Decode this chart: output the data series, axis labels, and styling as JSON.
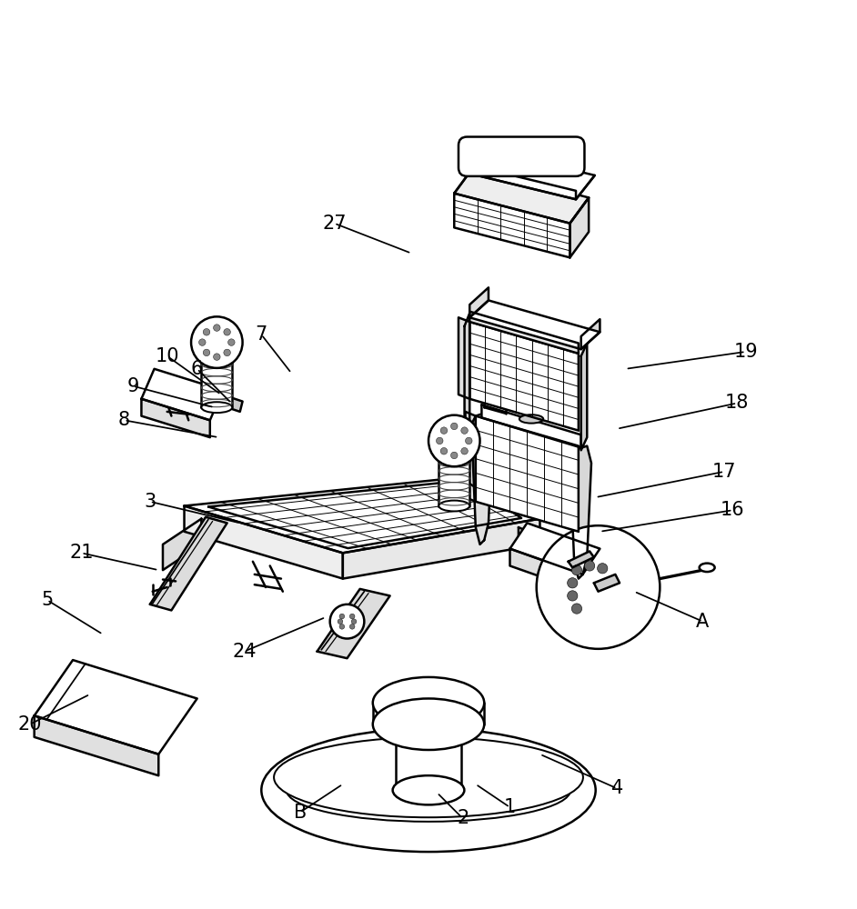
{
  "bg_color": "#ffffff",
  "line_color": "#000000",
  "line_width": 1.8,
  "annotations": [
    [
      "1",
      [
        0.595,
        0.088
      ],
      [
        0.555,
        0.115
      ]
    ],
    [
      "2",
      [
        0.54,
        0.075
      ],
      [
        0.51,
        0.105
      ]
    ],
    [
      "3",
      [
        0.175,
        0.445
      ],
      [
        0.28,
        0.42
      ]
    ],
    [
      "4",
      [
        0.72,
        0.11
      ],
      [
        0.63,
        0.15
      ]
    ],
    [
      "5",
      [
        0.055,
        0.33
      ],
      [
        0.12,
        0.29
      ]
    ],
    [
      "6",
      [
        0.23,
        0.6
      ],
      [
        0.27,
        0.56
      ]
    ],
    [
      "7",
      [
        0.305,
        0.64
      ],
      [
        0.34,
        0.595
      ]
    ],
    [
      "8",
      [
        0.145,
        0.54
      ],
      [
        0.255,
        0.52
      ]
    ],
    [
      "9",
      [
        0.155,
        0.58
      ],
      [
        0.25,
        0.555
      ]
    ],
    [
      "10",
      [
        0.195,
        0.615
      ],
      [
        0.258,
        0.57
      ]
    ],
    [
      "16",
      [
        0.855,
        0.435
      ],
      [
        0.7,
        0.41
      ]
    ],
    [
      "17",
      [
        0.845,
        0.48
      ],
      [
        0.695,
        0.45
      ]
    ],
    [
      "18",
      [
        0.86,
        0.56
      ],
      [
        0.72,
        0.53
      ]
    ],
    [
      "19",
      [
        0.87,
        0.62
      ],
      [
        0.73,
        0.6
      ]
    ],
    [
      "20",
      [
        0.035,
        0.185
      ],
      [
        0.105,
        0.22
      ]
    ],
    [
      "21",
      [
        0.095,
        0.385
      ],
      [
        0.185,
        0.365
      ]
    ],
    [
      "24",
      [
        0.285,
        0.27
      ],
      [
        0.38,
        0.31
      ]
    ],
    [
      "27",
      [
        0.39,
        0.77
      ],
      [
        0.48,
        0.735
      ]
    ],
    [
      "A",
      [
        0.82,
        0.305
      ],
      [
        0.74,
        0.34
      ]
    ],
    [
      "B",
      [
        0.35,
        0.082
      ],
      [
        0.4,
        0.115
      ]
    ]
  ]
}
